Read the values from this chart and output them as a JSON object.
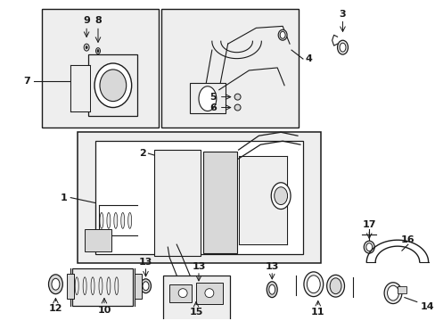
{
  "bg_color": "#ffffff",
  "fig_width": 4.89,
  "fig_height": 3.6,
  "dpi": 100,
  "line_color": "#1a1a1a",
  "fill_light": "#eeeeee",
  "fill_mid": "#d8d8d8",
  "fill_white": "#ffffff"
}
